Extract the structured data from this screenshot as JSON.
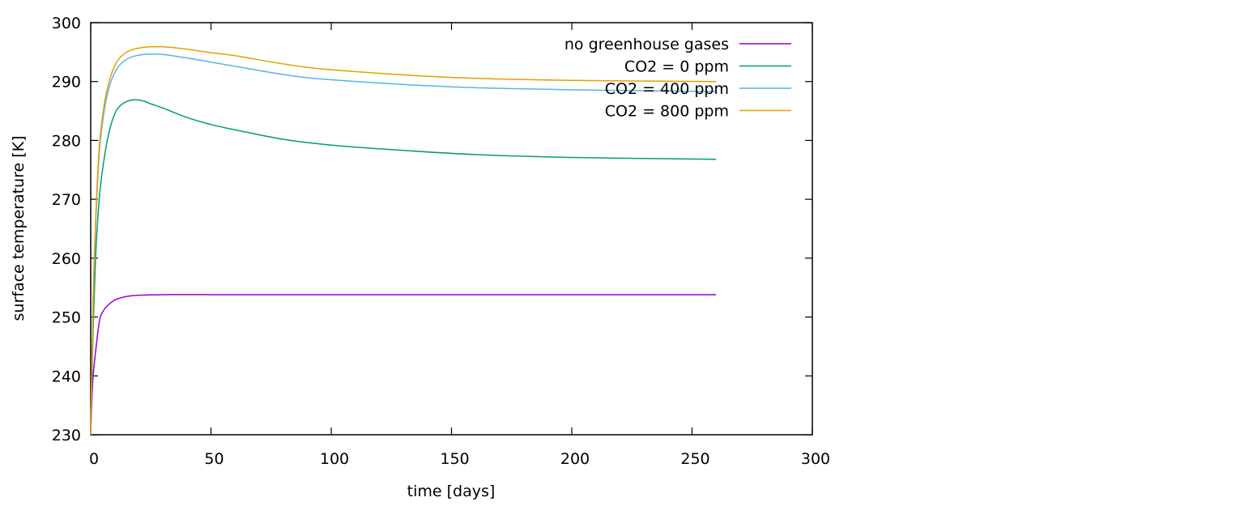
{
  "chart_data": {
    "type": "line",
    "xlabel": "time [days]",
    "ylabel": "surface temperature [K]",
    "xlim": [
      0,
      300
    ],
    "ylim": [
      230,
      300
    ],
    "xticks": [
      "0",
      "50",
      "100",
      "150",
      "200",
      "250",
      "300"
    ],
    "yticks": [
      "230",
      "240",
      "250",
      "260",
      "270",
      "280",
      "290",
      "300"
    ],
    "grid": false,
    "legend_position": "top-right",
    "series": [
      {
        "name": "no greenhouse gases",
        "color": "#9400d3",
        "x": [
          0,
          0.5,
          1,
          2,
          3,
          4,
          6,
          8,
          10,
          12,
          15,
          20,
          30,
          50,
          100,
          150,
          200,
          260
        ],
        "y": [
          230,
          236,
          240,
          244,
          247.5,
          250,
          251.5,
          252.3,
          252.9,
          253.2,
          253.5,
          253.7,
          253.8,
          253.8,
          253.8,
          253.8,
          253.8,
          253.8
        ]
      },
      {
        "name": "CO2 = 0 ppm",
        "color": "#009e73",
        "x": [
          0,
          1,
          2,
          3,
          4,
          6,
          8,
          10,
          12,
          15,
          18,
          22,
          25,
          30,
          40,
          50,
          60,
          80,
          100,
          130,
          160,
          200,
          260
        ],
        "y": [
          230,
          248,
          260,
          267,
          272,
          278,
          282,
          284.5,
          285.8,
          286.6,
          286.9,
          286.7,
          286.2,
          285.5,
          283.9,
          282.7,
          281.8,
          280.2,
          279.2,
          278.3,
          277.6,
          277.1,
          276.8
        ]
      },
      {
        "name": "CO2 = 400 ppm",
        "color": "#56b4e9",
        "x": [
          0,
          1,
          2,
          3,
          4,
          6,
          8,
          10,
          12,
          15,
          18,
          22,
          25,
          30,
          40,
          50,
          60,
          80,
          100,
          150,
          200,
          260
        ],
        "y": [
          230,
          252,
          265,
          274,
          280,
          286,
          289.5,
          291.5,
          292.8,
          293.8,
          294.3,
          294.6,
          294.65,
          294.6,
          294,
          293.3,
          292.6,
          291.2,
          290.3,
          289.1,
          288.6,
          288.3
        ]
      },
      {
        "name": "CO2 = 800 ppm",
        "color": "#e69f00",
        "x": [
          0,
          1,
          2,
          3,
          4,
          6,
          8,
          10,
          12,
          15,
          18,
          22,
          25,
          30,
          40,
          50,
          60,
          80,
          100,
          150,
          200,
          260
        ],
        "y": [
          230,
          253,
          266,
          275,
          281,
          287,
          290.5,
          292.7,
          294,
          295,
          295.5,
          295.8,
          295.9,
          295.9,
          295.5,
          294.9,
          294.4,
          293,
          292,
          290.7,
          290.2,
          290
        ]
      }
    ]
  }
}
